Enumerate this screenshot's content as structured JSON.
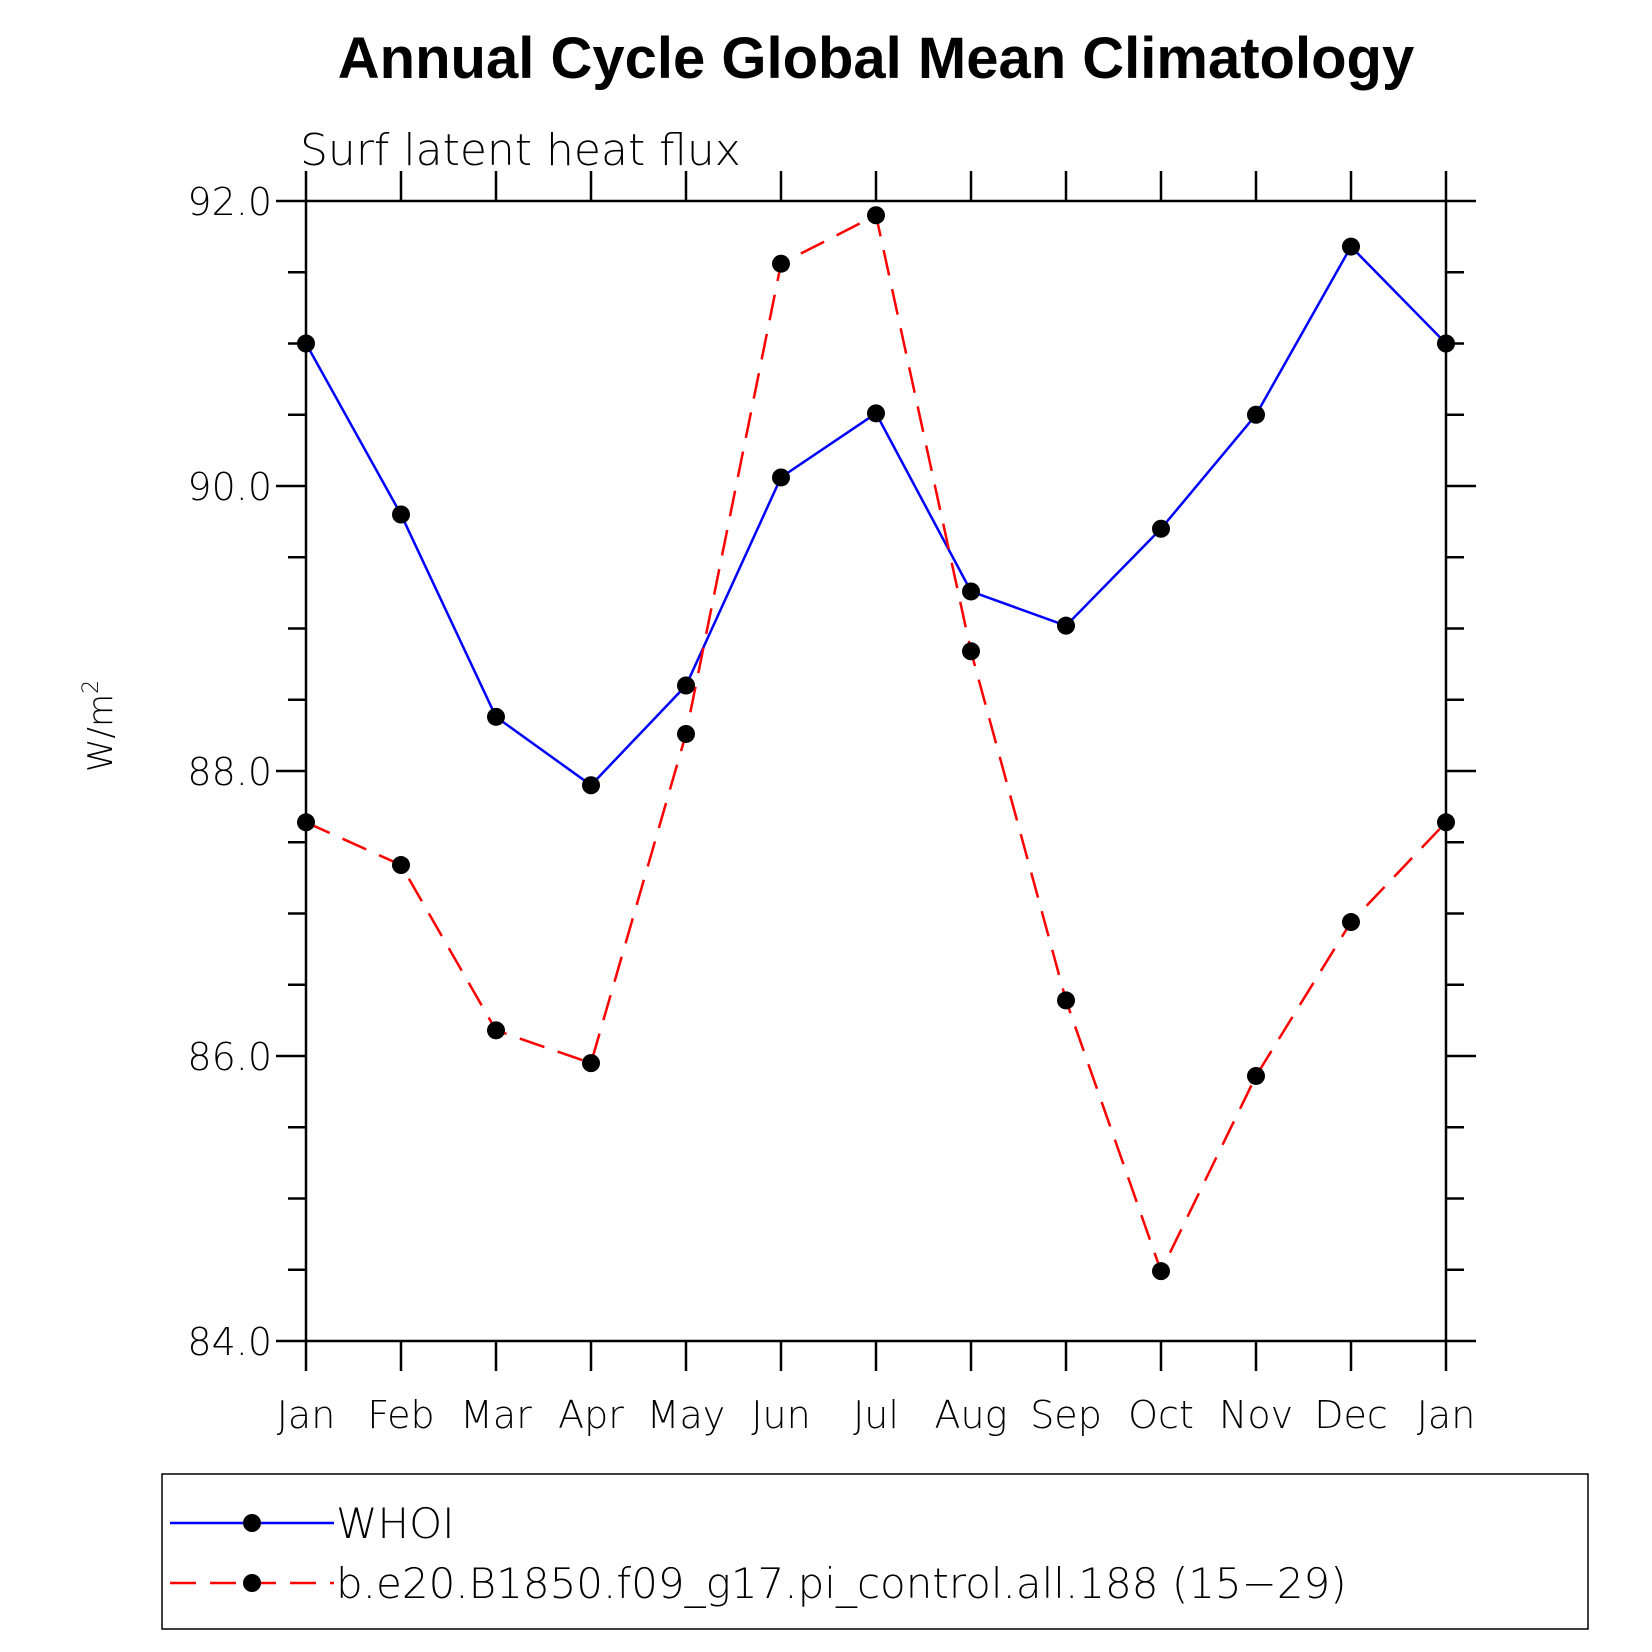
{
  "chart_data": {
    "type": "line",
    "title": "Annual Cycle Global Mean Climatology",
    "subtitle": "Surf latent heat flux",
    "xlabel": "",
    "ylabel": "W/m",
    "ylabel_superscript": "2",
    "ylim": [
      84.0,
      92.0
    ],
    "yticks": [
      84.0,
      86.0,
      88.0,
      90.0,
      92.0
    ],
    "yticks_labels": [
      "84.0",
      "86.0",
      "88.0",
      "90.0",
      "92.0"
    ],
    "categories": [
      "Jan",
      "Feb",
      "Mar",
      "Apr",
      "May",
      "Jun",
      "Jul",
      "Aug",
      "Sep",
      "Oct",
      "Nov",
      "Dec",
      "Jan"
    ],
    "grid": false,
    "legend_position": "bottom",
    "series": [
      {
        "name": "WHOI",
        "color": "#0000ff",
        "line_style": "solid",
        "marker": "filled-circle",
        "values": [
          91.0,
          89.8,
          88.38,
          87.9,
          88.6,
          90.06,
          90.51,
          89.26,
          89.02,
          89.7,
          90.5,
          91.68,
          91.0
        ]
      },
      {
        "name": "b.e20.B1850.f09_g17.pi_control.all.188 (15−29)",
        "color": "#ff0000",
        "line_style": "dashed",
        "marker": "filled-circle",
        "values": [
          87.64,
          87.34,
          86.18,
          85.95,
          88.26,
          91.56,
          91.9,
          88.84,
          86.39,
          84.49,
          85.86,
          86.94,
          87.64
        ]
      }
    ]
  }
}
